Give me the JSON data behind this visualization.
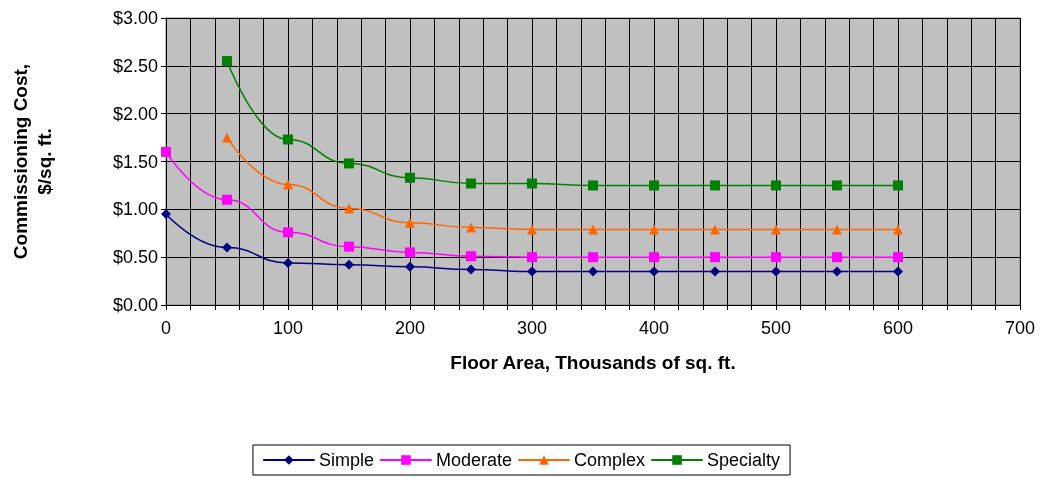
{
  "chart_data": {
    "type": "line",
    "xlabel": "Floor Area, Thousands of sq. ft.",
    "ylabel": "Commissioning Cost, $/sq. ft.",
    "series": [
      {
        "name": "Simple",
        "color": "#000080",
        "marker": "diamond",
        "x": [
          0,
          50,
          100,
          150,
          200,
          250,
          300,
          350,
          400,
          450,
          500,
          550,
          600
        ],
        "values": [
          0.95,
          0.6,
          0.44,
          0.42,
          0.4,
          0.37,
          0.35,
          0.35,
          0.35,
          0.35,
          0.35,
          0.35,
          0.35
        ]
      },
      {
        "name": "Moderate",
        "color": "#ff00ff",
        "marker": "square",
        "x": [
          0,
          50,
          100,
          150,
          200,
          250,
          300,
          350,
          400,
          450,
          500,
          550,
          600
        ],
        "values": [
          1.6,
          1.1,
          0.76,
          0.61,
          0.55,
          0.51,
          0.5,
          0.5,
          0.5,
          0.5,
          0.5,
          0.5,
          0.5
        ]
      },
      {
        "name": "Complex",
        "color": "#ff6600",
        "marker": "triangle",
        "x": [
          50,
          100,
          150,
          200,
          250,
          300,
          350,
          400,
          450,
          500,
          550,
          600
        ],
        "values": [
          1.75,
          1.26,
          1.01,
          0.86,
          0.81,
          0.79,
          0.79,
          0.79,
          0.79,
          0.79,
          0.79,
          0.79
        ]
      },
      {
        "name": "Specialty",
        "color": "#008000",
        "marker": "square",
        "x": [
          50,
          100,
          150,
          200,
          250,
          300,
          350,
          400,
          450,
          500,
          550,
          600
        ],
        "values": [
          2.55,
          1.73,
          1.48,
          1.33,
          1.27,
          1.27,
          1.25,
          1.25,
          1.25,
          1.25,
          1.25,
          1.25
        ]
      }
    ],
    "xlim": [
      0,
      700
    ],
    "xticks": [
      0,
      {
        "value": 20,
        "label": null
      },
      {
        "value": 40,
        "label": null
      },
      {
        "value": 60,
        "label": null
      },
      {
        "value": 80,
        "label": null
      },
      100,
      {
        "value": 120,
        "label": null
      },
      {
        "value": 140,
        "label": null
      },
      {
        "value": 160,
        "label": null
      },
      {
        "value": 180,
        "label": null
      },
      200,
      {
        "value": 220,
        "label": null
      },
      {
        "value": 240,
        "label": null
      },
      {
        "value": 260,
        "label": null
      },
      {
        "value": 280,
        "label": null
      },
      300,
      {
        "value": 320,
        "label": null
      },
      {
        "value": 340,
        "label": null
      },
      {
        "value": 360,
        "label": null
      },
      {
        "value": 380,
        "label": null
      },
      400,
      {
        "value": 420,
        "label": null
      },
      {
        "value": 440,
        "label": null
      },
      {
        "value": 460,
        "label": null
      },
      {
        "value": 480,
        "label": null
      },
      500,
      {
        "value": 520,
        "label": null
      },
      {
        "value": 540,
        "label": null
      },
      {
        "value": 560,
        "label": null
      },
      {
        "value": 580,
        "label": null
      },
      600,
      {
        "value": 620,
        "label": null
      },
      {
        "value": 640,
        "label": null
      },
      {
        "value": 660,
        "label": null
      },
      {
        "value": 680,
        "label": null
      },
      700
    ],
    "ylim": [
      0,
      3
    ],
    "yticks": [
      {
        "value": 0,
        "label": "$0.00"
      },
      {
        "value": 0.5,
        "label": "$0.50"
      },
      {
        "value": 1,
        "label": "$1.00"
      },
      {
        "value": 1.5,
        "label": "$1.50"
      },
      {
        "value": 2,
        "label": "$2.00"
      },
      {
        "value": 2.5,
        "label": "$2.50"
      },
      {
        "value": 3,
        "label": "$3.00"
      }
    ],
    "grid": true,
    "legend": "bottom",
    "line_style": "solid"
  }
}
